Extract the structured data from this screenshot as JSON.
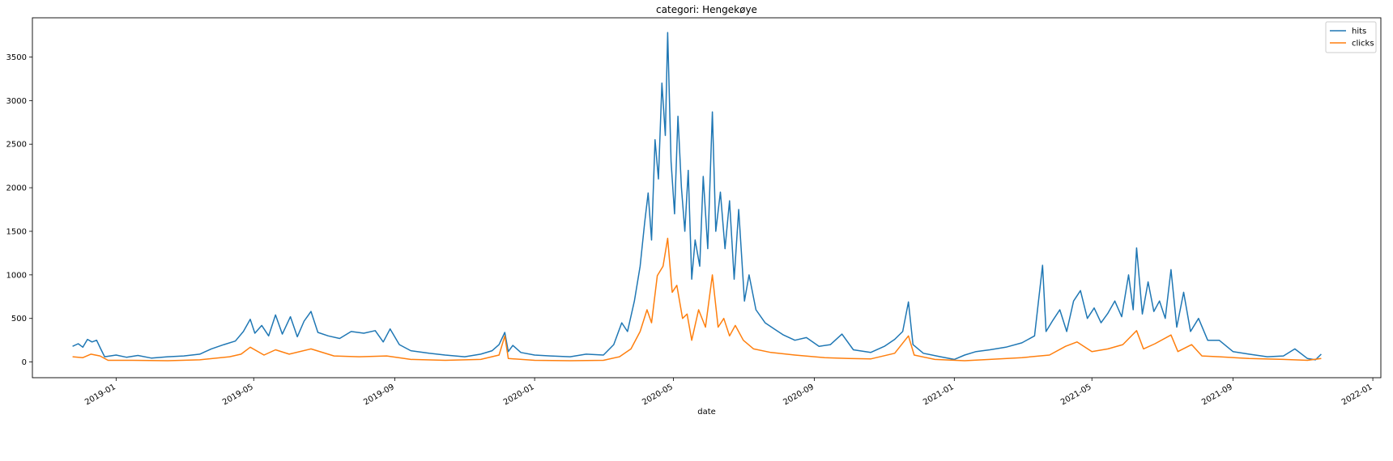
{
  "chart_data": {
    "type": "line",
    "title": "categori: Hengekøye",
    "xlabel": "date",
    "ylabel": "",
    "x_range": [
      "2018-10-20",
      "2022-01-08"
    ],
    "ylim": [
      -180,
      3950
    ],
    "yticks": [
      0,
      500,
      1000,
      1500,
      2000,
      2500,
      3000,
      3500
    ],
    "xticks": [
      {
        "date": "2019-01-01",
        "label": "2019-01"
      },
      {
        "date": "2019-05-01",
        "label": "2019-05"
      },
      {
        "date": "2019-09-01",
        "label": "2019-09"
      },
      {
        "date": "2020-01-01",
        "label": "2020-01"
      },
      {
        "date": "2020-05-01",
        "label": "2020-05"
      },
      {
        "date": "2020-09-01",
        "label": "2020-09"
      },
      {
        "date": "2021-01-01",
        "label": "2021-01"
      },
      {
        "date": "2021-05-01",
        "label": "2021-05"
      },
      {
        "date": "2021-09-01",
        "label": "2021-09"
      },
      {
        "date": "2022-01-01",
        "label": "2022-01"
      }
    ],
    "grid": false,
    "legend_position": "top-right",
    "series": [
      {
        "name": "hits",
        "color": "#1f77b4",
        "points": [
          [
            "2018-11-24",
            180
          ],
          [
            "2018-11-29",
            210
          ],
          [
            "2018-12-03",
            170
          ],
          [
            "2018-12-07",
            260
          ],
          [
            "2018-12-11",
            230
          ],
          [
            "2018-12-15",
            250
          ],
          [
            "2018-12-19",
            140
          ],
          [
            "2018-12-22",
            60
          ],
          [
            "2019-01-01",
            80
          ],
          [
            "2019-01-10",
            55
          ],
          [
            "2019-01-20",
            75
          ],
          [
            "2019-02-01",
            45
          ],
          [
            "2019-02-15",
            60
          ],
          [
            "2019-03-01",
            70
          ],
          [
            "2019-03-15",
            90
          ],
          [
            "2019-03-25",
            150
          ],
          [
            "2019-04-05",
            200
          ],
          [
            "2019-04-15",
            240
          ],
          [
            "2019-04-22",
            350
          ],
          [
            "2019-04-28",
            490
          ],
          [
            "2019-05-02",
            330
          ],
          [
            "2019-05-08",
            420
          ],
          [
            "2019-05-14",
            300
          ],
          [
            "2019-05-20",
            540
          ],
          [
            "2019-05-26",
            320
          ],
          [
            "2019-06-02",
            520
          ],
          [
            "2019-06-08",
            290
          ],
          [
            "2019-06-14",
            470
          ],
          [
            "2019-06-20",
            580
          ],
          [
            "2019-06-26",
            340
          ],
          [
            "2019-07-05",
            300
          ],
          [
            "2019-07-15",
            270
          ],
          [
            "2019-07-25",
            350
          ],
          [
            "2019-08-05",
            330
          ],
          [
            "2019-08-15",
            360
          ],
          [
            "2019-08-22",
            230
          ],
          [
            "2019-08-28",
            380
          ],
          [
            "2019-09-05",
            200
          ],
          [
            "2019-09-15",
            130
          ],
          [
            "2019-10-01",
            100
          ],
          [
            "2019-10-15",
            80
          ],
          [
            "2019-11-01",
            60
          ],
          [
            "2019-11-15",
            90
          ],
          [
            "2019-11-25",
            130
          ],
          [
            "2019-12-01",
            200
          ],
          [
            "2019-12-06",
            340
          ],
          [
            "2019-12-09",
            120
          ],
          [
            "2019-12-13",
            190
          ],
          [
            "2019-12-20",
            110
          ],
          [
            "2020-01-01",
            80
          ],
          [
            "2020-01-15",
            70
          ],
          [
            "2020-02-01",
            60
          ],
          [
            "2020-02-15",
            90
          ],
          [
            "2020-03-01",
            80
          ],
          [
            "2020-03-10",
            200
          ],
          [
            "2020-03-17",
            450
          ],
          [
            "2020-03-22",
            350
          ],
          [
            "2020-03-28",
            700
          ],
          [
            "2020-04-02",
            1100
          ],
          [
            "2020-04-06",
            1600
          ],
          [
            "2020-04-09",
            1940
          ],
          [
            "2020-04-12",
            1400
          ],
          [
            "2020-04-15",
            2550
          ],
          [
            "2020-04-18",
            2100
          ],
          [
            "2020-04-21",
            3200
          ],
          [
            "2020-04-24",
            2600
          ],
          [
            "2020-04-26",
            3780
          ],
          [
            "2020-04-29",
            2300
          ],
          [
            "2020-05-02",
            1700
          ],
          [
            "2020-05-05",
            2820
          ],
          [
            "2020-05-08",
            2000
          ],
          [
            "2020-05-11",
            1500
          ],
          [
            "2020-05-14",
            2200
          ],
          [
            "2020-05-17",
            950
          ],
          [
            "2020-05-20",
            1400
          ],
          [
            "2020-05-24",
            1100
          ],
          [
            "2020-05-27",
            2130
          ],
          [
            "2020-05-31",
            1300
          ],
          [
            "2020-06-04",
            2870
          ],
          [
            "2020-06-07",
            1500
          ],
          [
            "2020-06-11",
            1950
          ],
          [
            "2020-06-15",
            1300
          ],
          [
            "2020-06-19",
            1850
          ],
          [
            "2020-06-23",
            950
          ],
          [
            "2020-06-27",
            1750
          ],
          [
            "2020-07-02",
            700
          ],
          [
            "2020-07-06",
            1000
          ],
          [
            "2020-07-12",
            600
          ],
          [
            "2020-07-20",
            450
          ],
          [
            "2020-07-28",
            380
          ],
          [
            "2020-08-05",
            310
          ],
          [
            "2020-08-15",
            250
          ],
          [
            "2020-08-25",
            280
          ],
          [
            "2020-09-05",
            180
          ],
          [
            "2020-09-15",
            200
          ],
          [
            "2020-09-25",
            320
          ],
          [
            "2020-10-05",
            140
          ],
          [
            "2020-10-20",
            110
          ],
          [
            "2020-11-01",
            180
          ],
          [
            "2020-11-10",
            260
          ],
          [
            "2020-11-17",
            350
          ],
          [
            "2020-11-22",
            690
          ],
          [
            "2020-11-26",
            200
          ],
          [
            "2020-12-05",
            100
          ],
          [
            "2020-12-20",
            60
          ],
          [
            "2021-01-01",
            30
          ],
          [
            "2021-01-10",
            80
          ],
          [
            "2021-01-20",
            120
          ],
          [
            "2021-02-01",
            140
          ],
          [
            "2021-02-15",
            170
          ],
          [
            "2021-03-01",
            220
          ],
          [
            "2021-03-12",
            300
          ],
          [
            "2021-03-19",
            1110
          ],
          [
            "2021-03-22",
            350
          ],
          [
            "2021-03-28",
            480
          ],
          [
            "2021-04-03",
            600
          ],
          [
            "2021-04-09",
            350
          ],
          [
            "2021-04-15",
            700
          ],
          [
            "2021-04-21",
            820
          ],
          [
            "2021-04-27",
            500
          ],
          [
            "2021-05-03",
            620
          ],
          [
            "2021-05-09",
            450
          ],
          [
            "2021-05-15",
            560
          ],
          [
            "2021-05-21",
            700
          ],
          [
            "2021-05-27",
            520
          ],
          [
            "2021-06-02",
            1000
          ],
          [
            "2021-06-06",
            600
          ],
          [
            "2021-06-09",
            1310
          ],
          [
            "2021-06-14",
            550
          ],
          [
            "2021-06-19",
            920
          ],
          [
            "2021-06-24",
            580
          ],
          [
            "2021-06-29",
            700
          ],
          [
            "2021-07-04",
            500
          ],
          [
            "2021-07-09",
            1060
          ],
          [
            "2021-07-14",
            400
          ],
          [
            "2021-07-20",
            800
          ],
          [
            "2021-07-26",
            350
          ],
          [
            "2021-08-02",
            500
          ],
          [
            "2021-08-10",
            250
          ],
          [
            "2021-08-20",
            250
          ],
          [
            "2021-09-01",
            120
          ],
          [
            "2021-09-15",
            90
          ],
          [
            "2021-10-01",
            60
          ],
          [
            "2021-10-15",
            70
          ],
          [
            "2021-10-25",
            150
          ],
          [
            "2021-11-05",
            40
          ],
          [
            "2021-11-12",
            25
          ],
          [
            "2021-11-17",
            90
          ]
        ]
      },
      {
        "name": "clicks",
        "color": "#ff7f0e",
        "points": [
          [
            "2018-11-24",
            60
          ],
          [
            "2018-12-03",
            50
          ],
          [
            "2018-12-10",
            90
          ],
          [
            "2018-12-18",
            70
          ],
          [
            "2018-12-25",
            20
          ],
          [
            "2019-01-15",
            20
          ],
          [
            "2019-02-15",
            15
          ],
          [
            "2019-03-15",
            25
          ],
          [
            "2019-04-10",
            60
          ],
          [
            "2019-04-20",
            90
          ],
          [
            "2019-04-28",
            170
          ],
          [
            "2019-05-10",
            80
          ],
          [
            "2019-05-20",
            140
          ],
          [
            "2019-06-01",
            90
          ],
          [
            "2019-06-20",
            150
          ],
          [
            "2019-07-10",
            70
          ],
          [
            "2019-08-01",
            60
          ],
          [
            "2019-08-25",
            70
          ],
          [
            "2019-09-15",
            30
          ],
          [
            "2019-10-15",
            20
          ],
          [
            "2019-11-15",
            30
          ],
          [
            "2019-12-01",
            80
          ],
          [
            "2019-12-06",
            300
          ],
          [
            "2019-12-09",
            40
          ],
          [
            "2020-01-01",
            20
          ],
          [
            "2020-02-01",
            15
          ],
          [
            "2020-03-01",
            20
          ],
          [
            "2020-03-15",
            60
          ],
          [
            "2020-03-25",
            150
          ],
          [
            "2020-04-02",
            350
          ],
          [
            "2020-04-08",
            600
          ],
          [
            "2020-04-12",
            450
          ],
          [
            "2020-04-17",
            990
          ],
          [
            "2020-04-22",
            1100
          ],
          [
            "2020-04-26",
            1420
          ],
          [
            "2020-04-30",
            800
          ],
          [
            "2020-05-04",
            880
          ],
          [
            "2020-05-09",
            500
          ],
          [
            "2020-05-13",
            550
          ],
          [
            "2020-05-17",
            250
          ],
          [
            "2020-05-23",
            600
          ],
          [
            "2020-05-29",
            400
          ],
          [
            "2020-06-04",
            1000
          ],
          [
            "2020-06-09",
            400
          ],
          [
            "2020-06-14",
            500
          ],
          [
            "2020-06-19",
            300
          ],
          [
            "2020-06-24",
            420
          ],
          [
            "2020-07-01",
            250
          ],
          [
            "2020-07-10",
            150
          ],
          [
            "2020-07-25",
            110
          ],
          [
            "2020-08-15",
            80
          ],
          [
            "2020-09-10",
            50
          ],
          [
            "2020-10-01",
            40
          ],
          [
            "2020-10-20",
            35
          ],
          [
            "2020-11-10",
            100
          ],
          [
            "2020-11-22",
            300
          ],
          [
            "2020-11-27",
            80
          ],
          [
            "2020-12-15",
            30
          ],
          [
            "2021-01-10",
            15
          ],
          [
            "2021-02-01",
            30
          ],
          [
            "2021-03-01",
            50
          ],
          [
            "2021-03-25",
            80
          ],
          [
            "2021-04-08",
            180
          ],
          [
            "2021-04-18",
            230
          ],
          [
            "2021-05-01",
            120
          ],
          [
            "2021-05-15",
            150
          ],
          [
            "2021-05-28",
            200
          ],
          [
            "2021-06-09",
            360
          ],
          [
            "2021-06-15",
            150
          ],
          [
            "2021-06-25",
            210
          ],
          [
            "2021-07-09",
            310
          ],
          [
            "2021-07-15",
            120
          ],
          [
            "2021-07-27",
            200
          ],
          [
            "2021-08-05",
            70
          ],
          [
            "2021-08-20",
            60
          ],
          [
            "2021-09-15",
            40
          ],
          [
            "2021-10-15",
            30
          ],
          [
            "2021-11-05",
            20
          ],
          [
            "2021-11-17",
            40
          ]
        ]
      }
    ]
  }
}
